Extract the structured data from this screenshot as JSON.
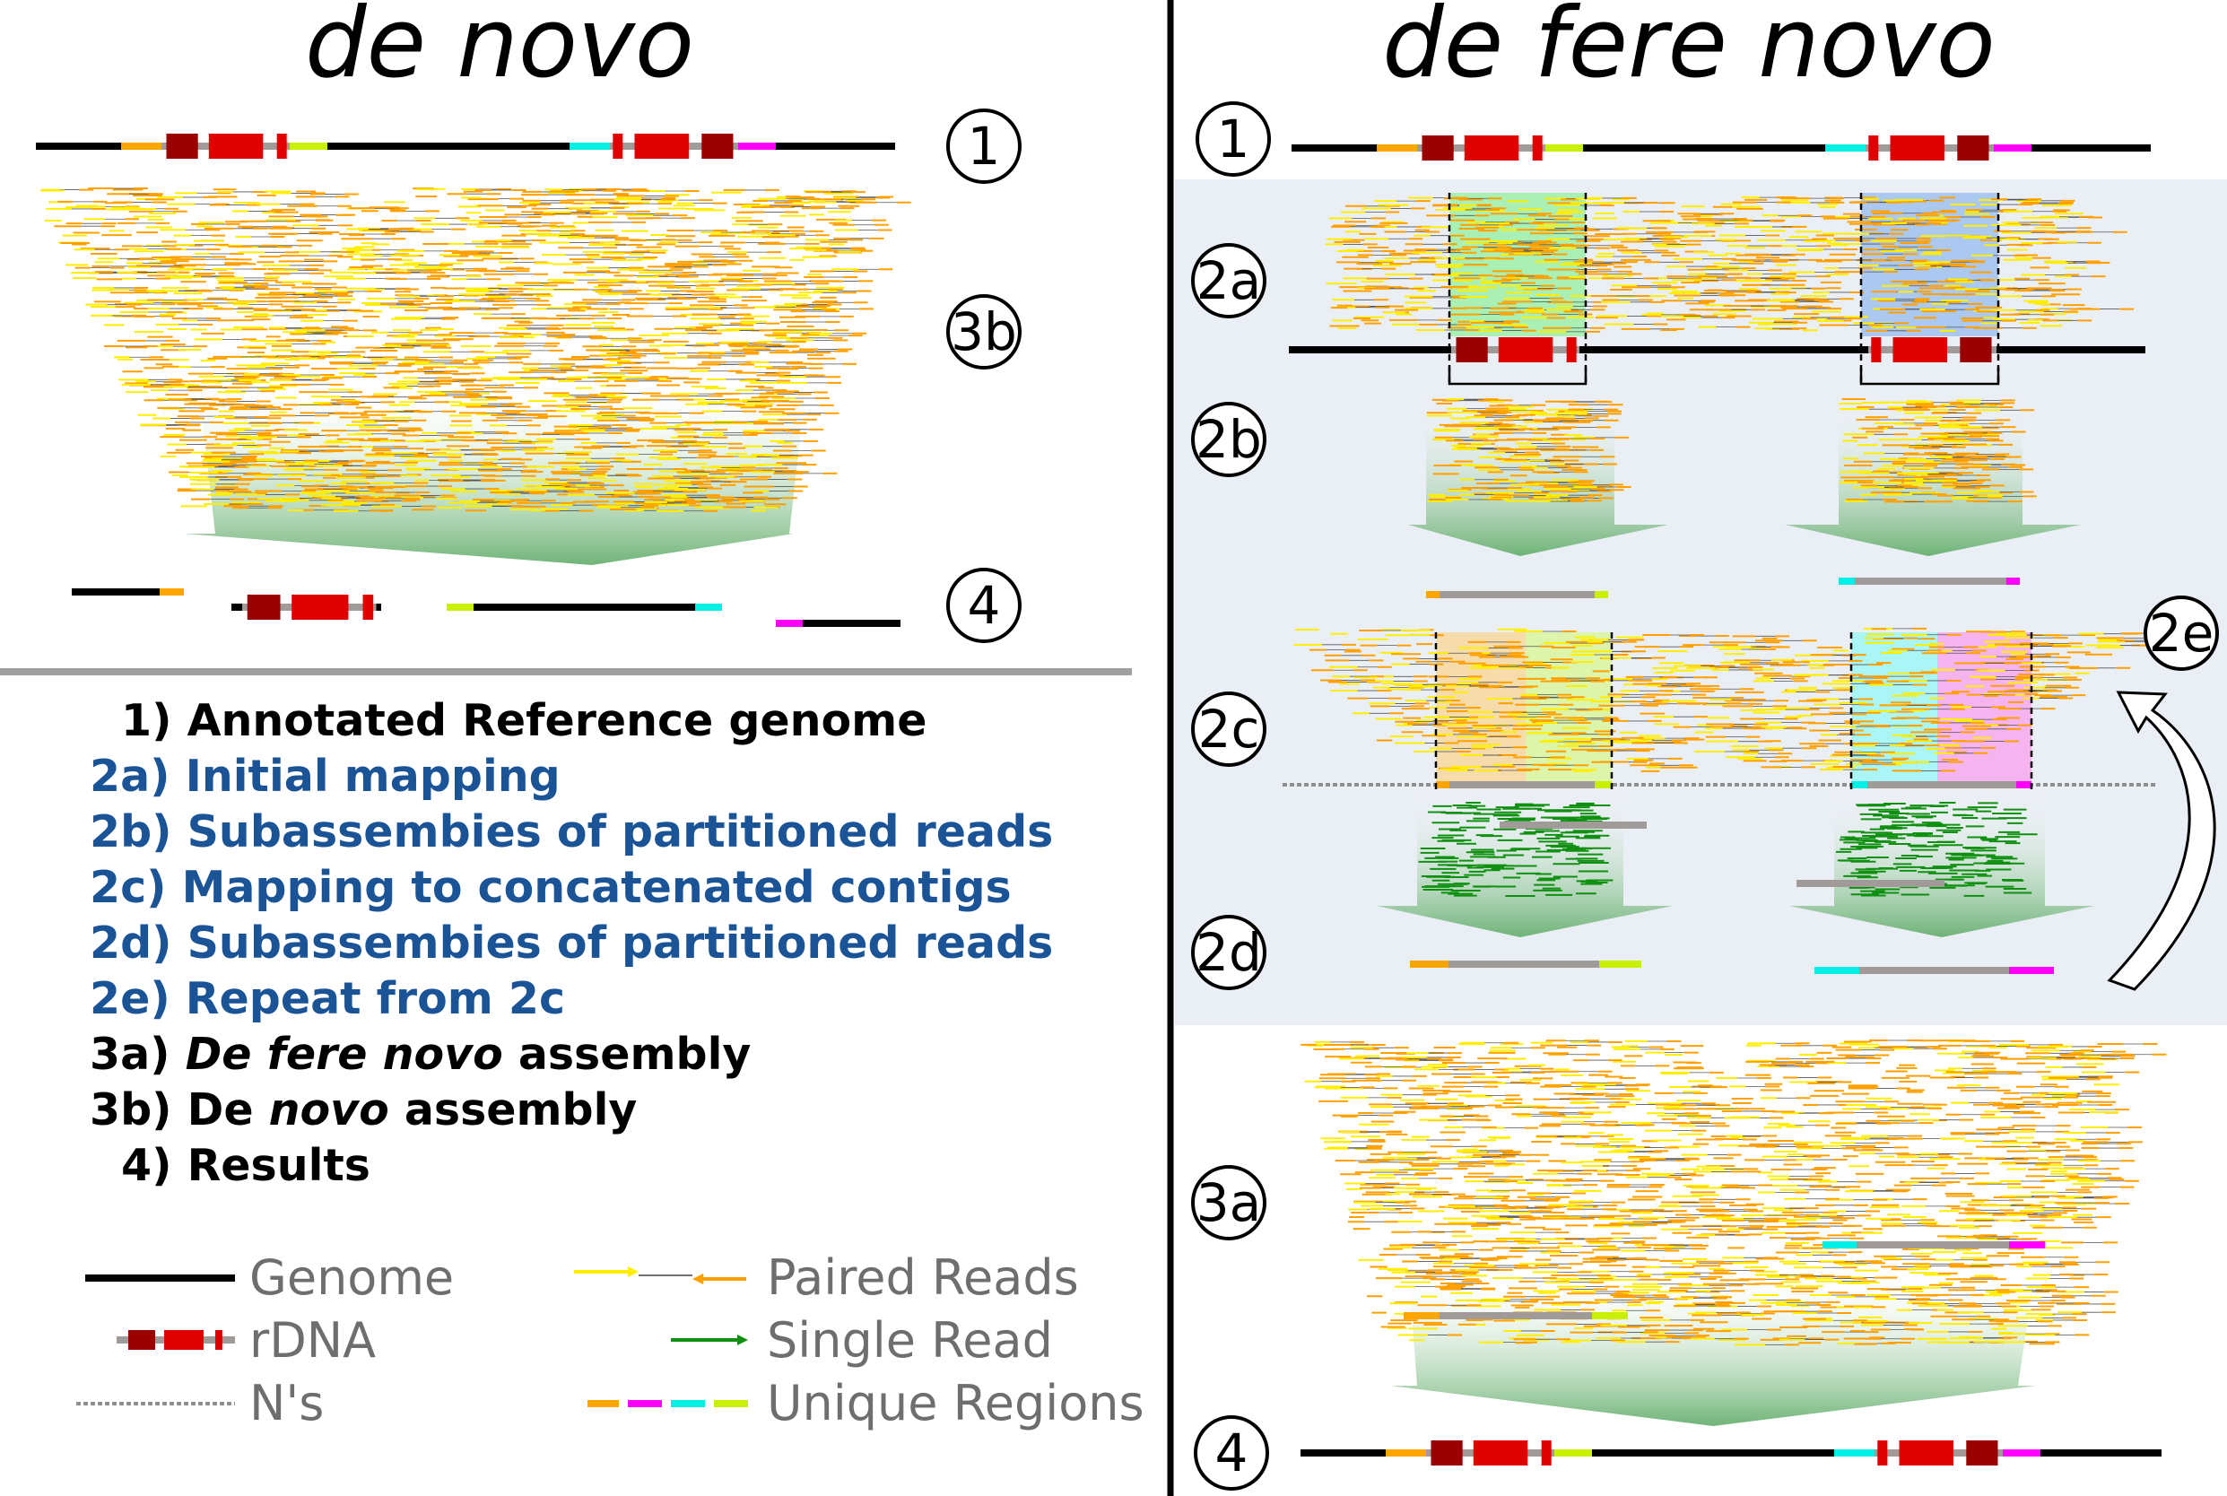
{
  "titles": {
    "left": "de novo",
    "right": "de fere novo"
  },
  "markers": {
    "left_1": "1",
    "left_3b": "3b",
    "left_4": "4",
    "right_1": "1",
    "right_2a": "2a",
    "right_2b": "2b",
    "right_2c": "2c",
    "right_2d": "2d",
    "right_2e": "2e",
    "right_3a": "3a",
    "right_4": "4"
  },
  "steps": [
    {
      "prefix": "1)",
      "text": "Annotated Reference genome",
      "color": "#000000"
    },
    {
      "prefix": "2a)",
      "text": "Initial mapping",
      "color": "#1a5496"
    },
    {
      "prefix": "2b)",
      "text": "Subassembies of partitioned reads",
      "color": "#1a5496"
    },
    {
      "prefix": "2c)",
      "text": "Mapping to concatenated contigs",
      "color": "#1a5496"
    },
    {
      "prefix": "2d)",
      "text": "Subassembies of partitioned reads",
      "color": "#1a5496"
    },
    {
      "prefix": "2e)",
      "text": "Repeat from 2c",
      "color": "#1a5496"
    },
    {
      "prefix": "3a)",
      "italic": "De fere novo",
      "text": "assembly",
      "color": "#000000"
    },
    {
      "prefix": "3b)",
      "plain": "De",
      "italic": "novo",
      "text": "assembly",
      "color": "#000000"
    },
    {
      "prefix": "4)",
      "text": "Results",
      "color": "#000000"
    }
  ],
  "legend": {
    "genome": "Genome",
    "rdna": "rDNA",
    "ns": "N's",
    "paired": "Paired Reads",
    "single": "Single Read",
    "unique": "Unique Regions"
  },
  "colors": {
    "genome": "#000000",
    "rdna_dark": "#9b0000",
    "rdna_red": "#e00000",
    "rdna_spacer": "#a09a98",
    "unique_orange": "#ffa500",
    "unique_magenta": "#ff00ff",
    "unique_cyan": "#00f0e6",
    "unique_lime": "#c8f000",
    "read_yellow": "#ffee00",
    "read_orange": "#ffa000",
    "single_read": "#109010",
    "panel_bg": "#eaeef5",
    "divider": "#a0a0a0"
  }
}
